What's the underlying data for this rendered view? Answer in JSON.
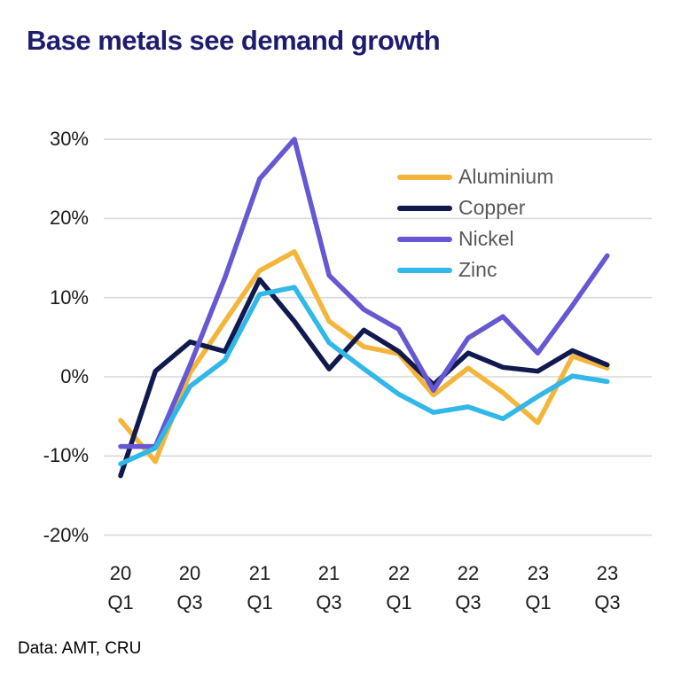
{
  "title": "Base metals see demand growth",
  "footer": "Data: AMT, CRU",
  "colors": {
    "title": "#1f1b6e",
    "grid": "#d9d9d9",
    "axis_text": "#1a1a1a",
    "legend_text": "#595959",
    "background": "#ffffff"
  },
  "chart_data": {
    "type": "line",
    "title": "Base metals see demand growth",
    "unit": "%",
    "grid": "horizontal",
    "legend_position": "inside upper right",
    "ylim": [
      -20,
      30
    ],
    "y_axis": {
      "ticks": [
        "30%",
        "20%",
        "10%",
        "0%",
        "-10%",
        "-20%"
      ],
      "tick_values": [
        30,
        20,
        10,
        0,
        -10,
        -20
      ]
    },
    "x_axis": {
      "ticks": [
        {
          "year": "20",
          "quarter": "Q1"
        },
        {
          "year": "20",
          "quarter": "Q3"
        },
        {
          "year": "21",
          "quarter": "Q1"
        },
        {
          "year": "21",
          "quarter": "Q3"
        },
        {
          "year": "22",
          "quarter": "Q1"
        },
        {
          "year": "22",
          "quarter": "Q3"
        },
        {
          "year": "23",
          "quarter": "Q1"
        },
        {
          "year": "23",
          "quarter": "Q3"
        }
      ]
    },
    "categories": [
      "2020 Q1",
      "2020 Q2",
      "2020 Q3",
      "2020 Q4",
      "2021 Q1",
      "2021 Q2",
      "2021 Q3",
      "2021 Q4",
      "2022 Q1",
      "2022 Q2",
      "2022 Q3",
      "2022 Q4",
      "2023 Q1",
      "2023 Q2",
      "2023 Q3"
    ],
    "series": [
      {
        "name": "Aluminium",
        "color": "#F3B63B",
        "values": [
          -5.5,
          -10.7,
          0.5,
          7.0,
          13.4,
          15.8,
          7.0,
          3.8,
          2.9,
          -2.3,
          1.1,
          -2.0,
          -5.8,
          2.6,
          1.1
        ]
      },
      {
        "name": "Copper",
        "color": "#111A4E",
        "values": [
          -12.5,
          0.7,
          4.4,
          3.2,
          12.3,
          7.0,
          1.0,
          5.9,
          3.2,
          -1.0,
          3.0,
          1.2,
          0.7,
          3.3,
          1.5
        ]
      },
      {
        "name": "Nickel",
        "color": "#6657D3",
        "values": [
          -8.8,
          -8.8,
          1.5,
          12.5,
          25.0,
          30.0,
          12.8,
          8.5,
          6.0,
          -1.7,
          4.9,
          7.6,
          3.0,
          9.0,
          15.3
        ]
      },
      {
        "name": "Zinc",
        "color": "#31B7E8",
        "values": [
          -11.0,
          -9.0,
          -1.2,
          2.1,
          10.4,
          11.3,
          4.3,
          1.0,
          -2.2,
          -4.5,
          -3.8,
          -5.3,
          -2.5,
          0.1,
          -0.6
        ]
      }
    ]
  }
}
